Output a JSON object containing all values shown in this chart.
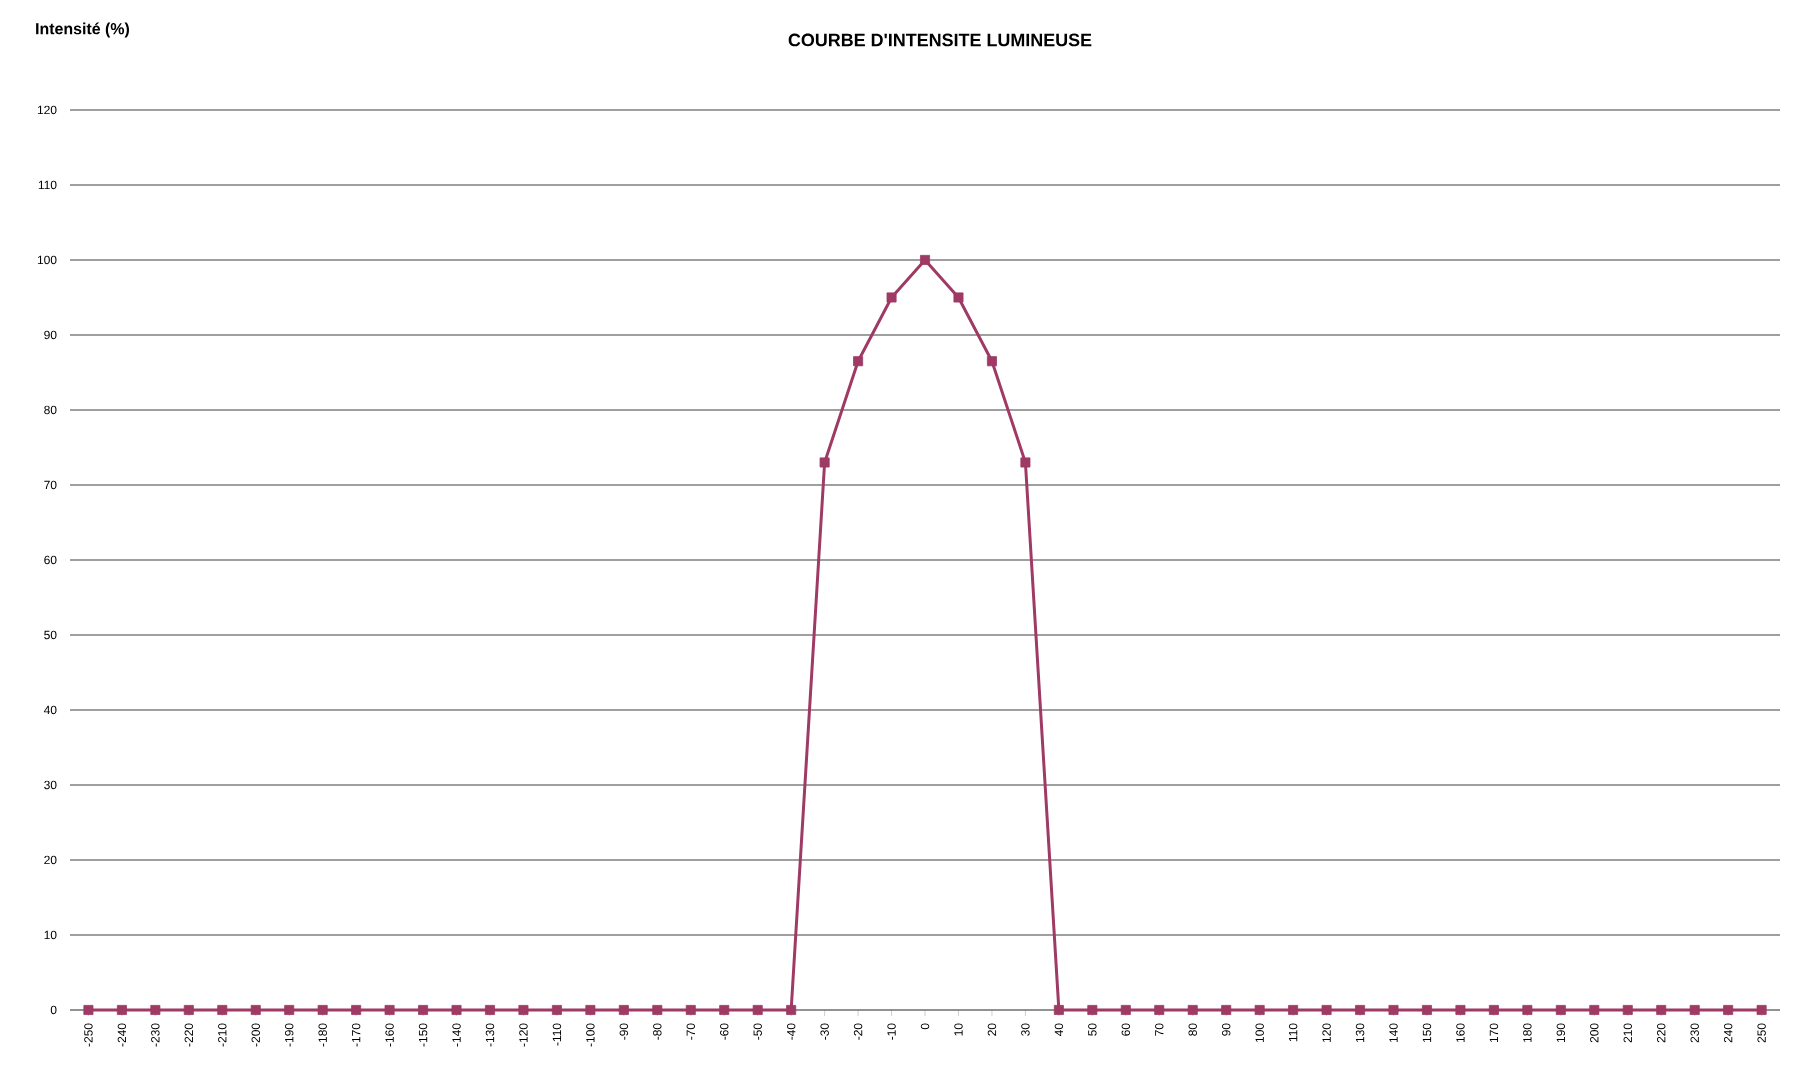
{
  "chart_data": {
    "type": "line",
    "title": "COURBE D'INTENSITE LUMINEUSE",
    "ylabel": "Intensité (%)",
    "categories": [
      "-250",
      "-240",
      "-230",
      "-220",
      "-210",
      "-200",
      "-190",
      "-180",
      "-170",
      "-160",
      "-150",
      "-140",
      "-130",
      "-120",
      "-110",
      "-100",
      "-90",
      "-80",
      "-70",
      "-60",
      "-50",
      "-40",
      "-30",
      "-20",
      "-10",
      "0",
      "10",
      "20",
      "30",
      "40",
      "50",
      "60",
      "70",
      "80",
      "90",
      "100",
      "110",
      "120",
      "130",
      "140",
      "150",
      "160",
      "170",
      "180",
      "190",
      "200",
      "210",
      "220",
      "230",
      "240",
      "250"
    ],
    "series": [
      {
        "color": "#9e3a64",
        "values": [
          0,
          0,
          0,
          0,
          0,
          0,
          0,
          0,
          0,
          0,
          0,
          0,
          0,
          0,
          0,
          0,
          0,
          0,
          0,
          0,
          0,
          0,
          73,
          86.5,
          95,
          100,
          95,
          86.5,
          73,
          0,
          0,
          0,
          0,
          0,
          0,
          0,
          0,
          0,
          0,
          0,
          0,
          0,
          0,
          0,
          0,
          0,
          0,
          0,
          0,
          0,
          0
        ]
      }
    ],
    "marker": "square",
    "ylim": [
      0,
      120
    ],
    "yticks": [
      0,
      10,
      20,
      30,
      40,
      50,
      60,
      70,
      80,
      90,
      100,
      110,
      120
    ],
    "grid": "y"
  }
}
